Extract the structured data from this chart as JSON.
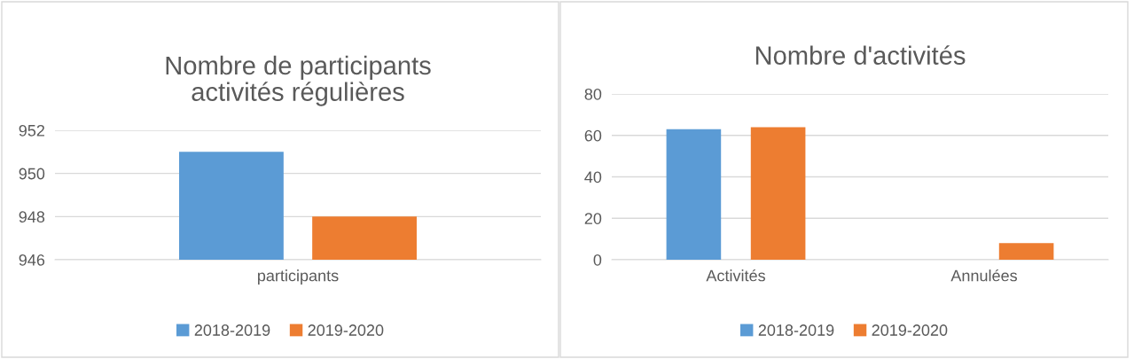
{
  "chart_data": [
    {
      "type": "bar",
      "title": "Nombre de participants\nactivités régulières",
      "categories": [
        "participants"
      ],
      "series": [
        {
          "name": "2018-2019",
          "color": "#5b9bd5",
          "values": [
            951
          ]
        },
        {
          "name": "2019-2020",
          "color": "#ed7d31",
          "values": [
            948
          ]
        }
      ],
      "ylim": [
        946,
        952
      ],
      "yticks": [
        946,
        948,
        950,
        952
      ],
      "grid": "y",
      "legend": "bottom"
    },
    {
      "type": "bar",
      "title": "Nombre d'activités",
      "categories": [
        "Activités",
        "Annulées"
      ],
      "series": [
        {
          "name": "2018-2019",
          "color": "#5b9bd5",
          "values": [
            63,
            0
          ]
        },
        {
          "name": "2019-2020",
          "color": "#ed7d31",
          "values": [
            64,
            8
          ]
        }
      ],
      "ylim": [
        0,
        80
      ],
      "yticks": [
        0,
        20,
        40,
        60,
        80
      ],
      "grid": "y",
      "legend": "bottom"
    }
  ]
}
